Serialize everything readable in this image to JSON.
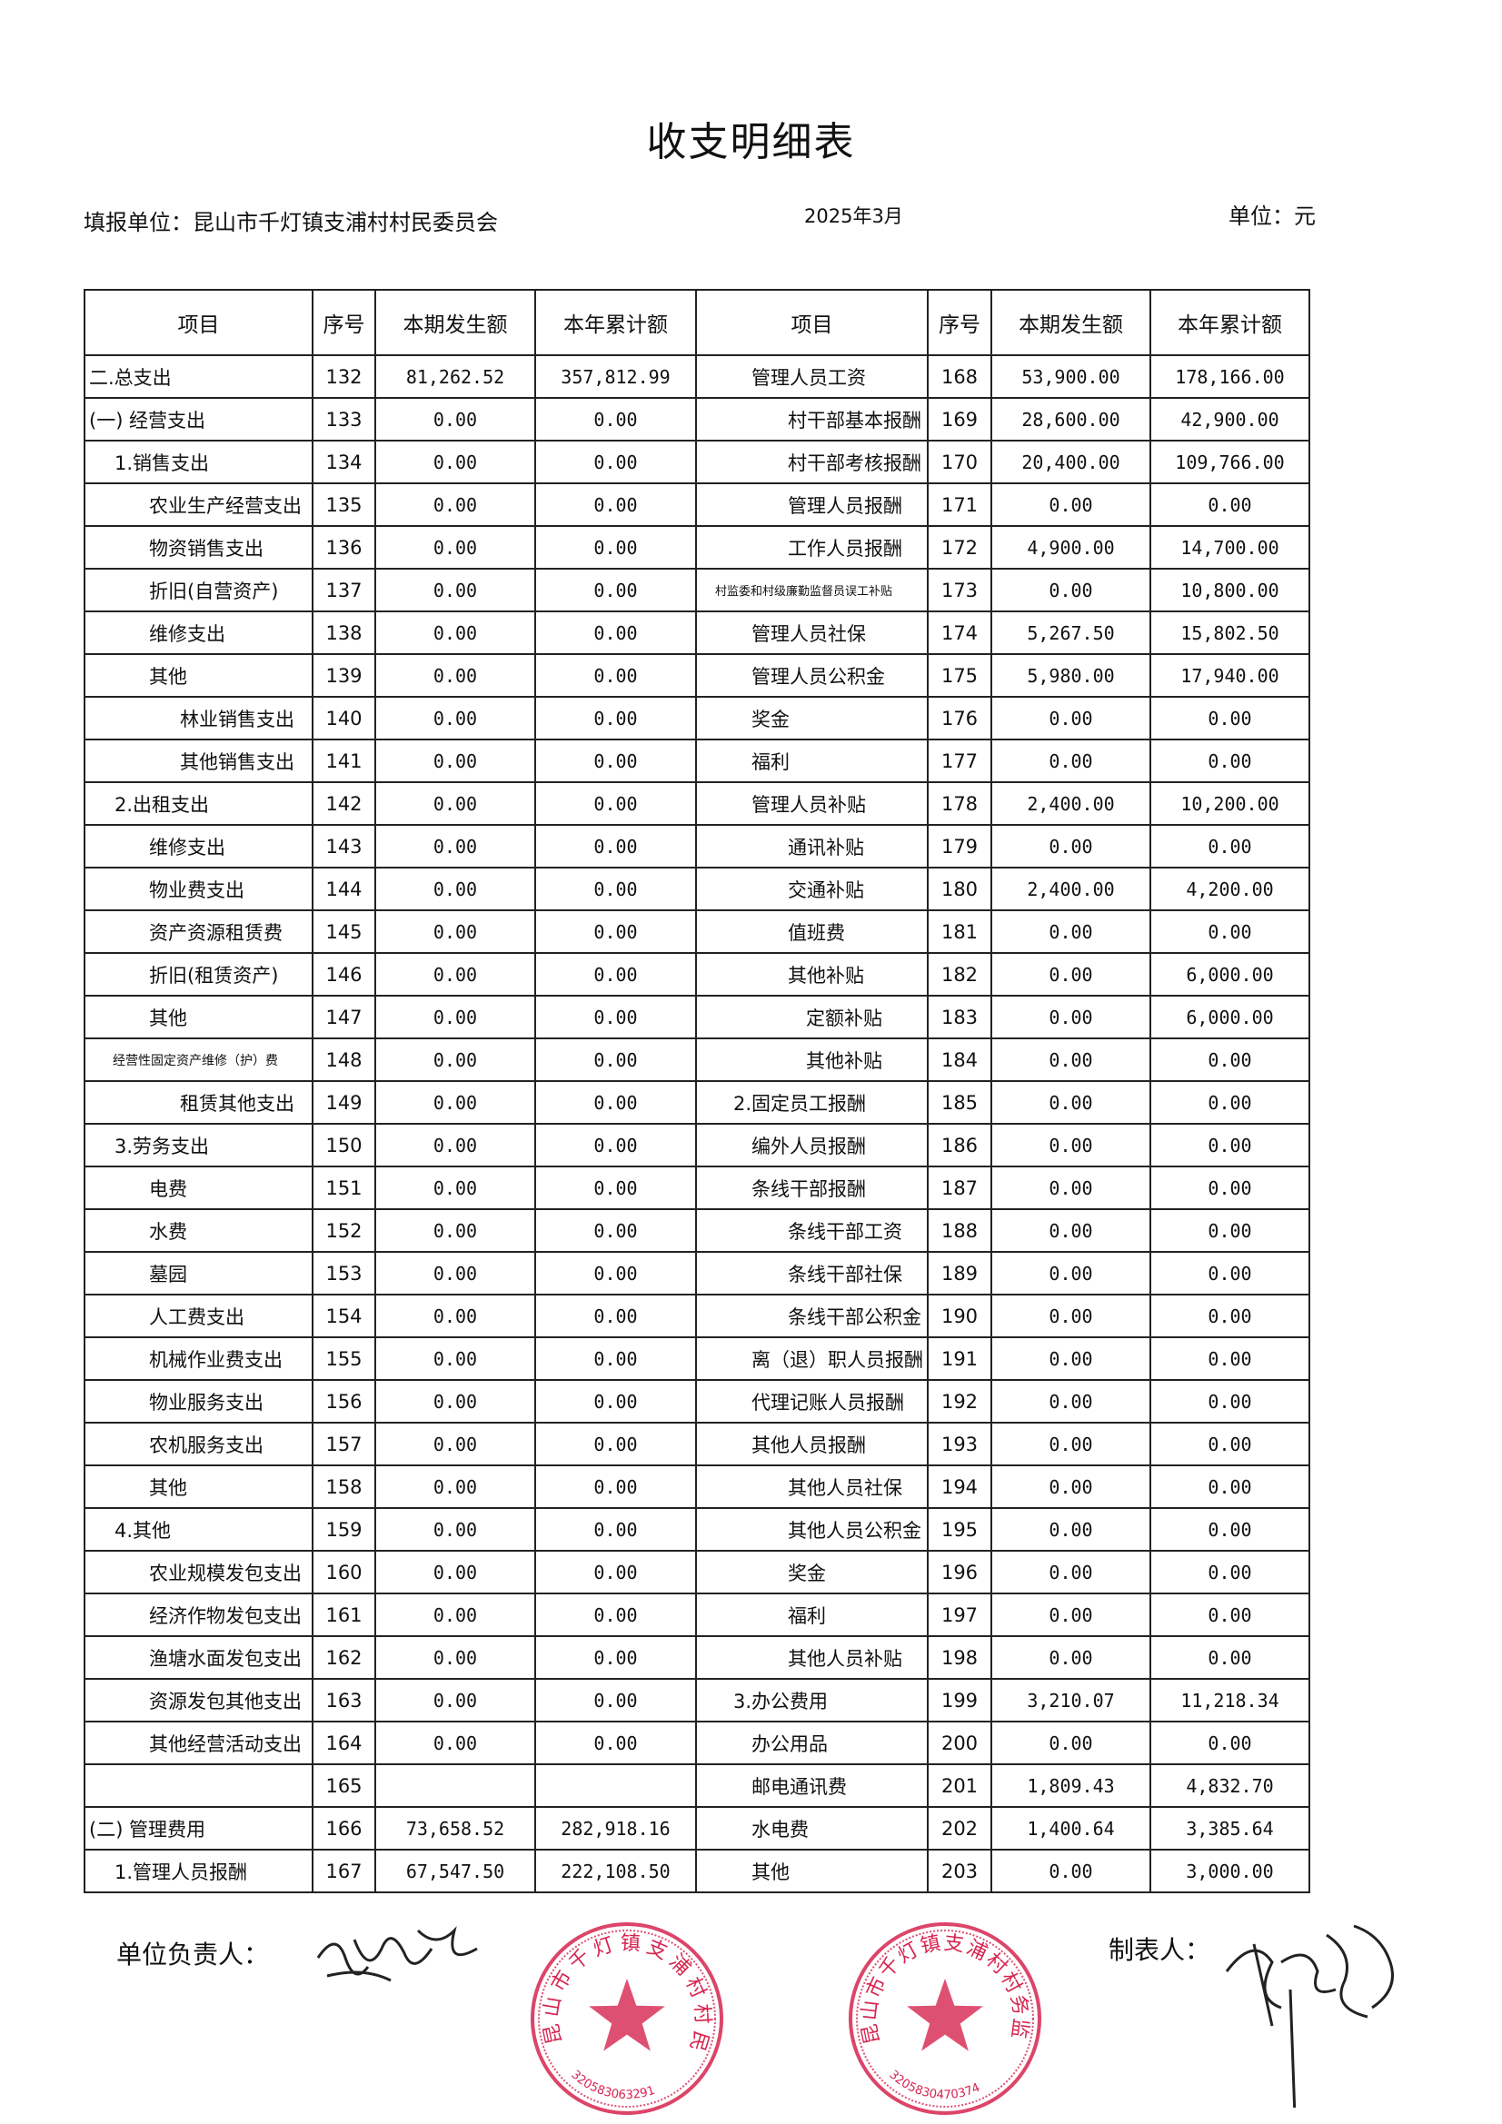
{
  "title": "收支明细表",
  "header": {
    "unit_label": "填报单位：昆山市千灯镇支浦村村民委员会",
    "period": "2025年3月",
    "currency": "单位：元"
  },
  "columns": [
    "项目",
    "序号",
    "本期发生额",
    "本年累计额",
    "项目",
    "序号",
    "本期发生额",
    "本年累计额"
  ],
  "left_rows": [
    {
      "item": "二.总支出",
      "no": "132",
      "current": "81,262.52",
      "ytd": "357,812.99",
      "level": 0
    },
    {
      "item": "(一) 经营支出",
      "no": "133",
      "current": "0.00",
      "ytd": "0.00",
      "level": 0
    },
    {
      "item": "1.销售支出",
      "no": "134",
      "current": "0.00",
      "ytd": "0.00",
      "level": 1
    },
    {
      "item": "农业生产经营支出",
      "no": "135",
      "current": "0.00",
      "ytd": "0.00",
      "level": 2
    },
    {
      "item": "物资销售支出",
      "no": "136",
      "current": "0.00",
      "ytd": "0.00",
      "level": 2
    },
    {
      "item": "折旧(自营资产)",
      "no": "137",
      "current": "0.00",
      "ytd": "0.00",
      "level": 2
    },
    {
      "item": "维修支出",
      "no": "138",
      "current": "0.00",
      "ytd": "0.00",
      "level": 2
    },
    {
      "item": "其他",
      "no": "139",
      "current": "0.00",
      "ytd": "0.00",
      "level": 2
    },
    {
      "item": "林业销售支出",
      "no": "140",
      "current": "0.00",
      "ytd": "0.00",
      "level": 3
    },
    {
      "item": "其他销售支出",
      "no": "141",
      "current": "0.00",
      "ytd": "0.00",
      "level": 3
    },
    {
      "item": "2.出租支出",
      "no": "142",
      "current": "0.00",
      "ytd": "0.00",
      "level": 1
    },
    {
      "item": "维修支出",
      "no": "143",
      "current": "0.00",
      "ytd": "0.00",
      "level": 2
    },
    {
      "item": "物业费支出",
      "no": "144",
      "current": "0.00",
      "ytd": "0.00",
      "level": 2
    },
    {
      "item": "资产资源租赁费",
      "no": "145",
      "current": "0.00",
      "ytd": "0.00",
      "level": 2
    },
    {
      "item": "折旧(租赁资产)",
      "no": "146",
      "current": "0.00",
      "ytd": "0.00",
      "level": 2
    },
    {
      "item": "其他",
      "no": "147",
      "current": "0.00",
      "ytd": "0.00",
      "level": 2
    },
    {
      "item": "经营性固定资产维修（护）费",
      "no": "148",
      "current": "0.00",
      "ytd": "0.00",
      "level": 3,
      "small": true
    },
    {
      "item": "租赁其他支出",
      "no": "149",
      "current": "0.00",
      "ytd": "0.00",
      "level": 3
    },
    {
      "item": "3.劳务支出",
      "no": "150",
      "current": "0.00",
      "ytd": "0.00",
      "level": 1
    },
    {
      "item": "电费",
      "no": "151",
      "current": "0.00",
      "ytd": "0.00",
      "level": 2
    },
    {
      "item": "水费",
      "no": "152",
      "current": "0.00",
      "ytd": "0.00",
      "level": 2
    },
    {
      "item": "墓园",
      "no": "153",
      "current": "0.00",
      "ytd": "0.00",
      "level": 2
    },
    {
      "item": "人工费支出",
      "no": "154",
      "current": "0.00",
      "ytd": "0.00",
      "level": 2
    },
    {
      "item": "机械作业费支出",
      "no": "155",
      "current": "0.00",
      "ytd": "0.00",
      "level": 2
    },
    {
      "item": "物业服务支出",
      "no": "156",
      "current": "0.00",
      "ytd": "0.00",
      "level": 2
    },
    {
      "item": "农机服务支出",
      "no": "157",
      "current": "0.00",
      "ytd": "0.00",
      "level": 2
    },
    {
      "item": "其他",
      "no": "158",
      "current": "0.00",
      "ytd": "0.00",
      "level": 2
    },
    {
      "item": "4.其他",
      "no": "159",
      "current": "0.00",
      "ytd": "0.00",
      "level": 1
    },
    {
      "item": "农业规模发包支出",
      "no": "160",
      "current": "0.00",
      "ytd": "0.00",
      "level": 2
    },
    {
      "item": "经济作物发包支出",
      "no": "161",
      "current": "0.00",
      "ytd": "0.00",
      "level": 2
    },
    {
      "item": "渔塘水面发包支出",
      "no": "162",
      "current": "0.00",
      "ytd": "0.00",
      "level": 2
    },
    {
      "item": "资源发包其他支出",
      "no": "163",
      "current": "0.00",
      "ytd": "0.00",
      "level": 2
    },
    {
      "item": "其他经营活动支出",
      "no": "164",
      "current": "0.00",
      "ytd": "0.00",
      "level": 2
    },
    {
      "item": "",
      "no": "165",
      "current": "",
      "ytd": "",
      "level": 0
    },
    {
      "item": "(二) 管理费用",
      "no": "166",
      "current": "73,658.52",
      "ytd": "282,918.16",
      "level": 0
    },
    {
      "item": "1.管理人员报酬",
      "no": "167",
      "current": "67,547.50",
      "ytd": "222,108.50",
      "level": 1
    }
  ],
  "right_rows": [
    {
      "item": "管理人员工资",
      "no": "168",
      "current": "53,900.00",
      "ytd": "178,166.00",
      "level": 1
    },
    {
      "item": "村干部基本报酬",
      "no": "169",
      "current": "28,600.00",
      "ytd": "42,900.00",
      "level": 2
    },
    {
      "item": "村干部考核报酬",
      "no": "170",
      "current": "20,400.00",
      "ytd": "109,766.00",
      "level": 2
    },
    {
      "item": "管理人员报酬",
      "no": "171",
      "current": "0.00",
      "ytd": "0.00",
      "level": 2
    },
    {
      "item": "工作人员报酬",
      "no": "172",
      "current": "4,900.00",
      "ytd": "14,700.00",
      "level": 2
    },
    {
      "item": "村监委和村级廉勤监督员误工补贴",
      "no": "173",
      "current": "0.00",
      "ytd": "10,800.00",
      "level": 2,
      "small": true
    },
    {
      "item": "管理人员社保",
      "no": "174",
      "current": "5,267.50",
      "ytd": "15,802.50",
      "level": 1
    },
    {
      "item": "管理人员公积金",
      "no": "175",
      "current": "5,980.00",
      "ytd": "17,940.00",
      "level": 1
    },
    {
      "item": "奖金",
      "no": "176",
      "current": "0.00",
      "ytd": "0.00",
      "level": 1
    },
    {
      "item": "福利",
      "no": "177",
      "current": "0.00",
      "ytd": "0.00",
      "level": 1
    },
    {
      "item": "管理人员补贴",
      "no": "178",
      "current": "2,400.00",
      "ytd": "10,200.00",
      "level": 1
    },
    {
      "item": "通讯补贴",
      "no": "179",
      "current": "0.00",
      "ytd": "0.00",
      "level": 2
    },
    {
      "item": "交通补贴",
      "no": "180",
      "current": "2,400.00",
      "ytd": "4,200.00",
      "level": 2
    },
    {
      "item": "值班费",
      "no": "181",
      "current": "0.00",
      "ytd": "0.00",
      "level": 2
    },
    {
      "item": "其他补贴",
      "no": "182",
      "current": "0.00",
      "ytd": "6,000.00",
      "level": 2
    },
    {
      "item": "定额补贴",
      "no": "183",
      "current": "0.00",
      "ytd": "6,000.00",
      "level": 3
    },
    {
      "item": "其他补贴",
      "no": "184",
      "current": "0.00",
      "ytd": "0.00",
      "level": 3
    },
    {
      "item": "2.固定员工报酬",
      "no": "185",
      "current": "0.00",
      "ytd": "0.00",
      "level": 0
    },
    {
      "item": "编外人员报酬",
      "no": "186",
      "current": "0.00",
      "ytd": "0.00",
      "level": 1
    },
    {
      "item": "条线干部报酬",
      "no": "187",
      "current": "0.00",
      "ytd": "0.00",
      "level": 1
    },
    {
      "item": "条线干部工资",
      "no": "188",
      "current": "0.00",
      "ytd": "0.00",
      "level": 2
    },
    {
      "item": "条线干部社保",
      "no": "189",
      "current": "0.00",
      "ytd": "0.00",
      "level": 2
    },
    {
      "item": "条线干部公积金",
      "no": "190",
      "current": "0.00",
      "ytd": "0.00",
      "level": 2
    },
    {
      "item": "离（退）职人员报酬",
      "no": "191",
      "current": "0.00",
      "ytd": "0.00",
      "level": 1
    },
    {
      "item": "代理记账人员报酬",
      "no": "192",
      "current": "0.00",
      "ytd": "0.00",
      "level": 1
    },
    {
      "item": "其他人员报酬",
      "no": "193",
      "current": "0.00",
      "ytd": "0.00",
      "level": 1
    },
    {
      "item": "其他人员社保",
      "no": "194",
      "current": "0.00",
      "ytd": "0.00",
      "level": 2
    },
    {
      "item": "其他人员公积金",
      "no": "195",
      "current": "0.00",
      "ytd": "0.00",
      "level": 2
    },
    {
      "item": "奖金",
      "no": "196",
      "current": "0.00",
      "ytd": "0.00",
      "level": 2
    },
    {
      "item": "福利",
      "no": "197",
      "current": "0.00",
      "ytd": "0.00",
      "level": 2
    },
    {
      "item": "其他人员补贴",
      "no": "198",
      "current": "0.00",
      "ytd": "0.00",
      "level": 2
    },
    {
      "item": "3.办公费用",
      "no": "199",
      "current": "3,210.07",
      "ytd": "11,218.34",
      "level": 0
    },
    {
      "item": "办公用品",
      "no": "200",
      "current": "0.00",
      "ytd": "0.00",
      "level": 1
    },
    {
      "item": "邮电通讯费",
      "no": "201",
      "current": "1,809.43",
      "ytd": "4,832.70",
      "level": 1
    },
    {
      "item": "水电费",
      "no": "202",
      "current": "1,400.64",
      "ytd": "3,385.64",
      "level": 1
    },
    {
      "item": "其他",
      "no": "203",
      "current": "0.00",
      "ytd": "3,000.00",
      "level": 1
    }
  ],
  "footer": {
    "head_label": "单位负责人：",
    "preparer_label": "制表人："
  },
  "stamps": [
    {
      "text": "昆山市千灯镇支浦村村民委员会",
      "code": "320583063291",
      "color": "#d6244f"
    },
    {
      "text": "昆山市千灯镇支浦村村务监督委员会",
      "code": "3205830470374",
      "color": "#d6244f"
    }
  ]
}
